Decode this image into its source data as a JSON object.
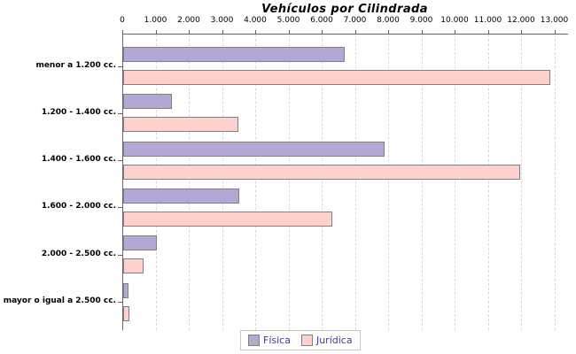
{
  "title": "Vehículos por Cilindrada",
  "colors": {
    "fisica_fill": "#b2a7d5",
    "juridica_fill": "#ffd1cd",
    "bar_border": "#808080",
    "axis": "#666666",
    "gridline": "#d9d9d9",
    "legend_text": "#483699",
    "legend_border": "#c6c6c6",
    "title_color": "#000000"
  },
  "chart_data": {
    "type": "bar",
    "orientation": "horizontal",
    "title": "Vehículos por Cilindrada",
    "categories": [
      "menor a 1.200 cc.",
      "1.200 - 1.400 cc.",
      "1.400 - 1.600 cc.",
      "1.600 - 2.000 cc.",
      "2.000 - 2.500 cc.",
      "mayor o igual a 2.500 cc."
    ],
    "series": [
      {
        "name": "Física",
        "color": "#b2a7d5",
        "values": [
          6600,
          1400,
          7800,
          3450,
          950,
          110
        ]
      },
      {
        "name": "Jurídica",
        "color": "#ffd1cd",
        "values": [
          12800,
          3400,
          11900,
          6250,
          550,
          120
        ]
      }
    ],
    "xlim": [
      0,
      13000
    ],
    "x_tick_interval": 1000,
    "x_tick_labels": [
      "0",
      "1.000",
      "2.000",
      "3.000",
      "4.000",
      "5.000",
      "6.000",
      "7.000",
      "8.000",
      "9.000",
      "10.000",
      "11.000",
      "12.000",
      "13.000"
    ],
    "grid": "vertical-dashed",
    "legend_position": "bottom-center"
  },
  "legend": {
    "items": [
      {
        "label": "Física"
      },
      {
        "label": "Jurídica"
      }
    ]
  }
}
